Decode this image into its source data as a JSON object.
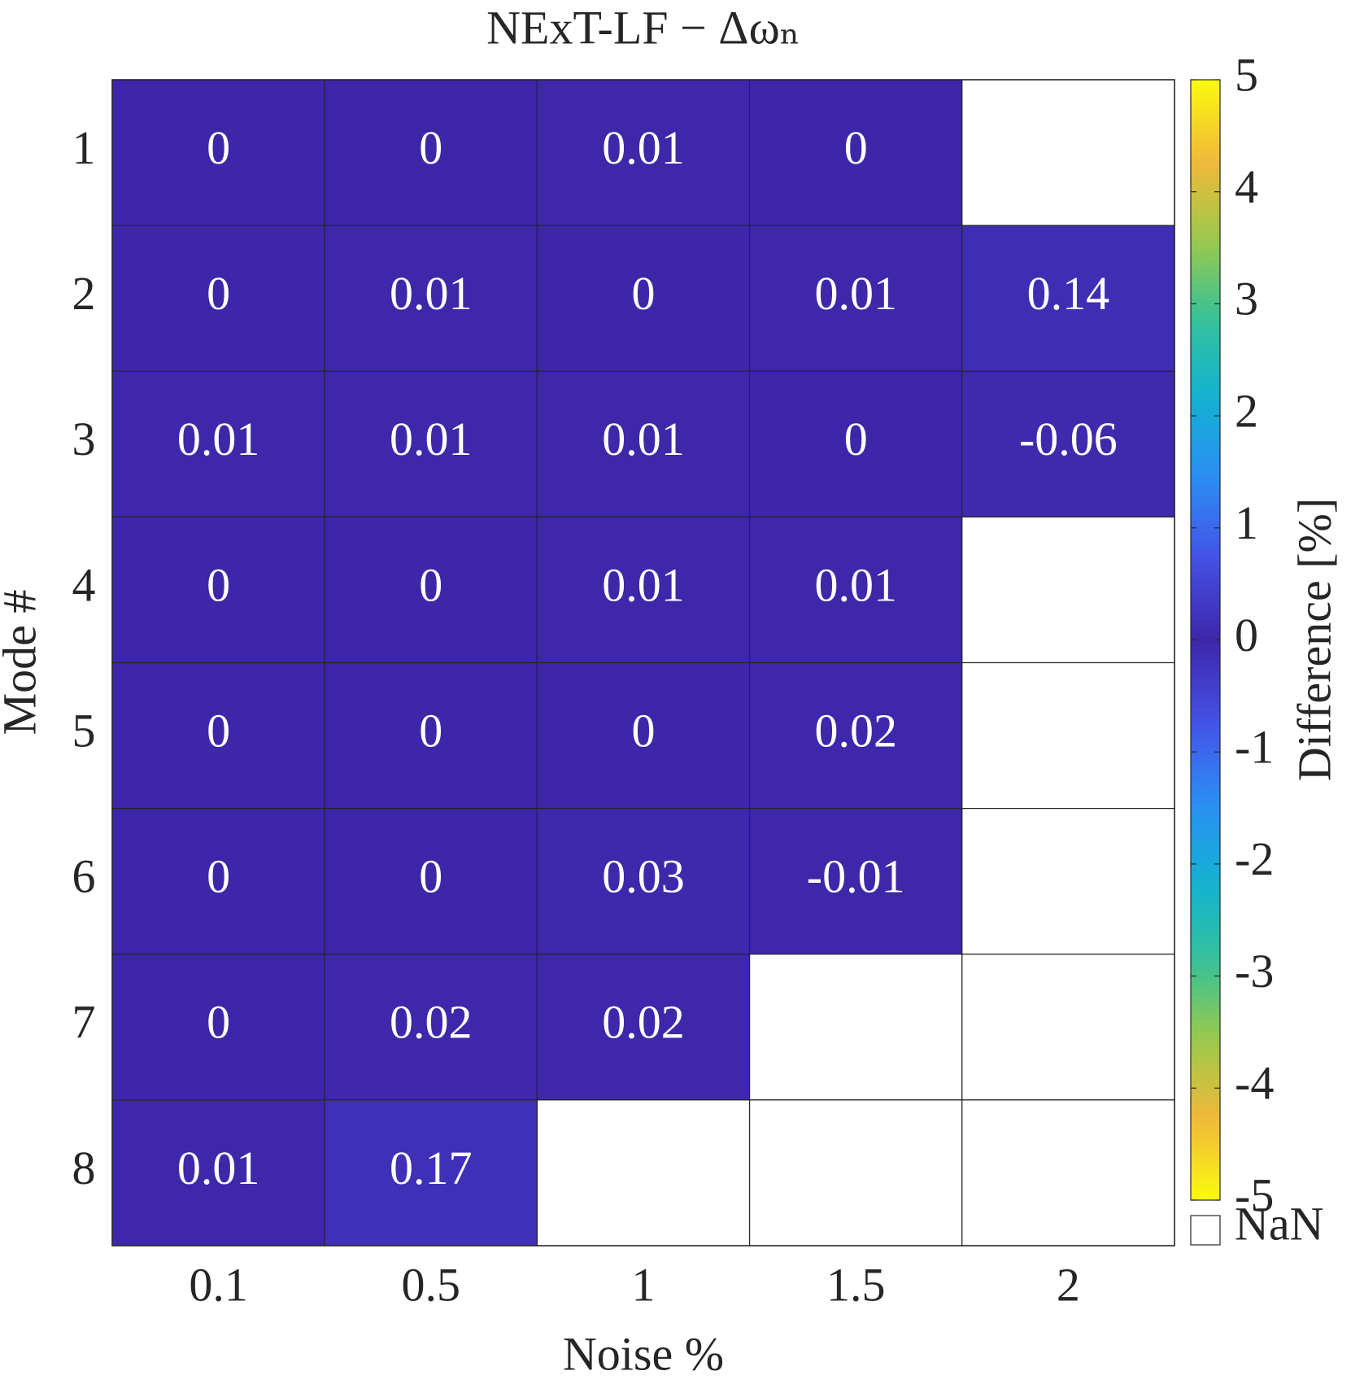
{
  "chart_data": {
    "type": "heatmap",
    "title": "NExT-LF − Δωₙ",
    "x_label": "Noise %",
    "y_label": "Mode #",
    "colorbar_label": "Difference [%]",
    "nan_label": "NaN",
    "x_categories": [
      "0.1",
      "0.5",
      "1",
      "1.5",
      "2"
    ],
    "y_categories": [
      "1",
      "2",
      "3",
      "4",
      "5",
      "6",
      "7",
      "8"
    ],
    "values": [
      [
        0,
        0,
        0.01,
        0,
        null
      ],
      [
        0,
        0.01,
        0,
        0.01,
        0.14
      ],
      [
        0.01,
        0.01,
        0.01,
        0,
        -0.06
      ],
      [
        0,
        0,
        0.01,
        0.01,
        null
      ],
      [
        0,
        0,
        0,
        0.02,
        null
      ],
      [
        0,
        0,
        0.03,
        -0.01,
        null
      ],
      [
        0,
        0.02,
        0.02,
        null,
        null
      ],
      [
        0.01,
        0.17,
        null,
        null,
        null
      ]
    ],
    "clim": [
      -5,
      5
    ],
    "cticks": [
      -5,
      -4,
      -3,
      -2,
      -1,
      0,
      1,
      2,
      3,
      4,
      5
    ],
    "colormap": [
      "#3e26a8",
      "#4550e6",
      "#2d8cf4",
      "#12b1d4",
      "#33c29a",
      "#9bc94a",
      "#f2b83a",
      "#f9fb0e"
    ],
    "colormap_symmetric": true,
    "nan_color": "#ffffff"
  }
}
